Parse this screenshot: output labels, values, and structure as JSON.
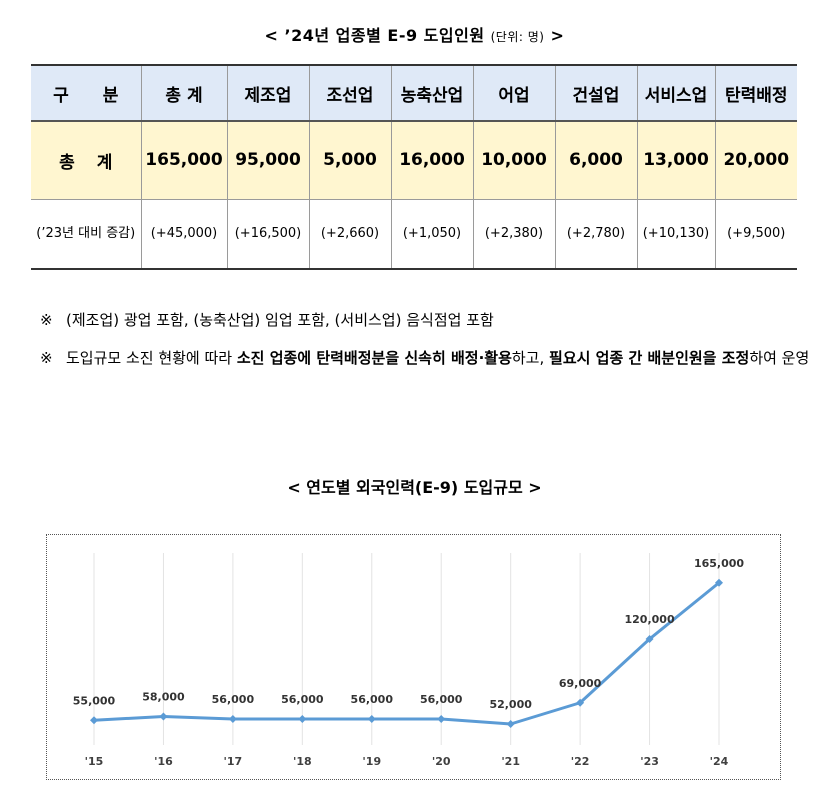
{
  "table_title": {
    "open": "< ’24년 업종별 E-9 도입인원",
    "unit": "(단위: 명)",
    "close": ">"
  },
  "table": {
    "headers": [
      "구 분",
      "총 계",
      "제조업",
      "조선업",
      "농축산업",
      "어업",
      "건설업",
      "서비스업",
      "탄력배정"
    ],
    "total_row": {
      "label": "총 계",
      "values": [
        "165,000",
        "95,000",
        "5,000",
        "16,000",
        "10,000",
        "6,000",
        "13,000",
        "20,000"
      ]
    },
    "diff_row": {
      "label": "(’23년 대비 증감)",
      "values": [
        "(+45,000)",
        "(+16,500)",
        "(+2,660)",
        "(+1,050)",
        "(+2,380)",
        "(+2,780)",
        "(+10,130)",
        "(+9,500)"
      ]
    }
  },
  "notes": {
    "mark": "※",
    "note1": "(제조업) 광업 포함, (농축산업) 임업 포함, (서비스업) 음식점업 포함",
    "note2_part1": "도입규모 소진 현황에 따라 ",
    "note2_bold1": "소진 업종에 탄력배정분을 신속히 배정·활용",
    "note2_part2": "하고, ",
    "note2_bold2": "필요시 업종 간 배분인원을 조정",
    "note2_part3": "하여 운영"
  },
  "chart_title": "< 연도별 외국인력(E-9) 도입규모 >",
  "chart_data": {
    "type": "line",
    "title": "< 연도별 외국인력(E-9) 도입규모 >",
    "categories": [
      "'15",
      "'16",
      "'17",
      "'18",
      "'19",
      "'20",
      "'21",
      "'22",
      "'23",
      "'24"
    ],
    "values": [
      55000,
      58000,
      56000,
      56000,
      56000,
      56000,
      52000,
      69000,
      120000,
      165000
    ],
    "labels": [
      "55,000",
      "58,000",
      "56,000",
      "56,000",
      "56,000",
      "56,000",
      "52,000",
      "69,000",
      "120,000",
      "165,000"
    ],
    "ylim": [
      0,
      180000
    ],
    "grid": "vertical",
    "line_color": "#5b9bd5",
    "label_color": "#333333",
    "tick_color": "#404040",
    "grid_color": "#e3e3e3"
  }
}
